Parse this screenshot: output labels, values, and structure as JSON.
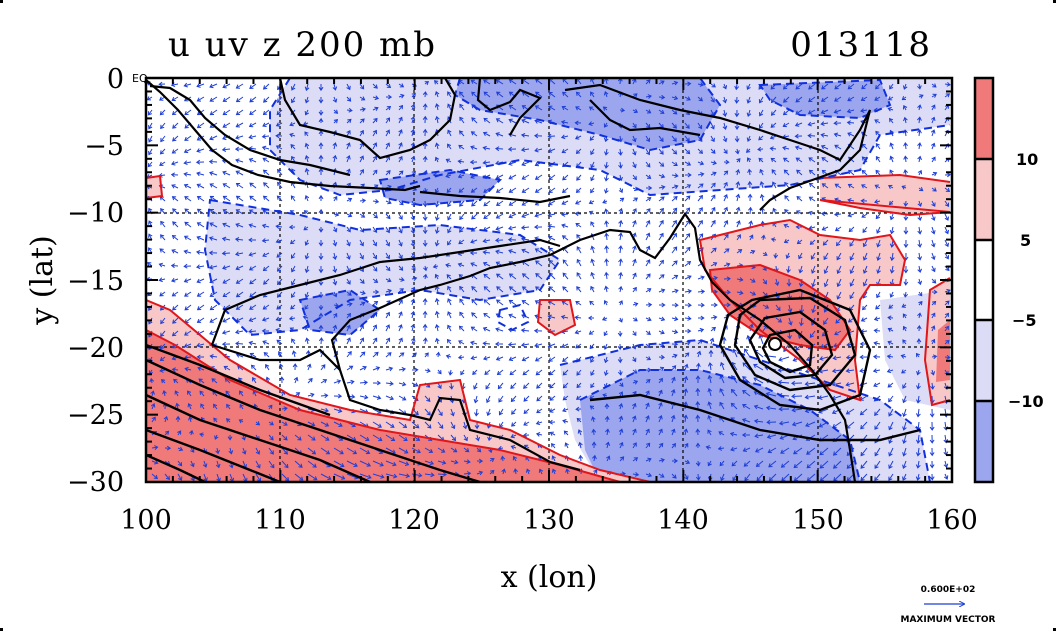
{
  "title": {
    "left": "u uv z 200 mb",
    "right": "013118"
  },
  "axes": {
    "xlabel": "x (lon)",
    "ylabel": "y (lat)",
    "x_ticks": [
      "100",
      "110",
      "120",
      "130",
      "140",
      "150",
      "160"
    ],
    "y_ticks": [
      "0",
      "−5",
      "−10",
      "−15",
      "−20",
      "−25",
      "−30"
    ],
    "xlim": [
      100,
      160
    ],
    "ylim": [
      -30,
      0
    ],
    "eq_label": "EQ"
  },
  "colorbar": {
    "labels": [
      "10",
      "5",
      "−5",
      "−10"
    ],
    "colors": [
      "#f07a7a",
      "#f8c8c8",
      "#ffffff",
      "#dcdcf6",
      "#9ca6ee"
    ]
  },
  "vector_key": {
    "value": "0.600E+02",
    "label": "MAXIMUM VECTOR",
    "color": "#1f3fd6"
  },
  "colors": {
    "positive_strong": "#f07a7a",
    "positive_weak": "#f8c8c8",
    "negative_weak": "#dcdcf6",
    "negative_strong": "#9ca6ee",
    "vectors": "#1f3fd6",
    "contour_red": "#e0161a",
    "contour_blue": "#1030e0",
    "coastline": "#000000"
  },
  "map_features": {
    "low_center_lon": 147,
    "low_center_lat": -19.7,
    "grid": true
  }
}
